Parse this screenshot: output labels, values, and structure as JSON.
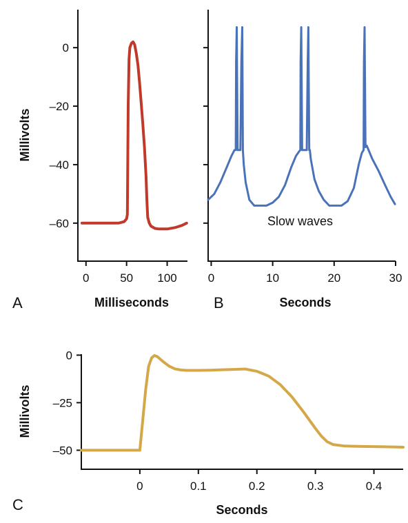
{
  "chart_data": [
    {
      "panel": "A",
      "type": "line",
      "xlabel": "Milliseconds",
      "ylabel": "Millivolts",
      "xlim": [
        -10,
        125
      ],
      "ylim": [
        -73,
        13
      ],
      "xticks": [
        0,
        50,
        100
      ],
      "xtick_labels": [
        "0",
        "50",
        "100"
      ],
      "yticks": [
        0,
        -20,
        -40,
        -60
      ],
      "ytick_labels": [
        "0",
        "–20",
        "–40",
        "–60"
      ],
      "grid": false,
      "color": "#c0392b",
      "series": [
        {
          "x": [
            -5,
            10,
            25,
            40,
            47,
            50,
            51,
            52,
            53,
            54,
            56,
            58,
            60,
            62,
            64,
            66,
            68,
            70,
            72,
            74,
            75,
            76,
            78,
            80,
            85,
            90,
            100,
            110,
            118,
            124
          ],
          "y": [
            -60,
            -60,
            -60,
            -60,
            -59.5,
            -58.5,
            -57,
            -20,
            -4,
            0,
            1.5,
            2,
            1,
            -2,
            -6,
            -12,
            -19,
            -26,
            -34,
            -44,
            -52,
            -58,
            -60,
            -61,
            -61.8,
            -62,
            -62,
            -61.5,
            -60.8,
            -60
          ]
        }
      ]
    },
    {
      "panel": "B",
      "type": "line",
      "xlabel": "Seconds",
      "ylabel": "",
      "xlim": [
        -0.5,
        30
      ],
      "ylim": [
        -73,
        13
      ],
      "xticks": [
        0,
        10,
        20,
        30
      ],
      "xtick_labels": [
        "0",
        "10",
        "20",
        "30"
      ],
      "yticks": [
        0,
        -20,
        -40,
        -60
      ],
      "grid": false,
      "annotation": "Slow waves",
      "color": "#4a72b8",
      "series": [
        {
          "x": [
            -0.5,
            0.5,
            1.5,
            2.5,
            3.3,
            3.8,
            4.0,
            4.05,
            4.15,
            4.3,
            4.45,
            4.55,
            4.75,
            4.9,
            5.05,
            5.15,
            5.3,
            5.6,
            6.2,
            7,
            8,
            9,
            10,
            11,
            12,
            13,
            13.8,
            14.3,
            14.5,
            14.55,
            14.65,
            14.8,
            15.0,
            15.15,
            15.55,
            15.7,
            15.8,
            15.95,
            16.05,
            16.2,
            16.8,
            17.5,
            18.3,
            19.2,
            20.2,
            21.2,
            22.2,
            23.2,
            24,
            24.5,
            24.8,
            24.85,
            24.95,
            25.1,
            25.3,
            25.5,
            26.2,
            27.2,
            28.3,
            29.2,
            29.9
          ],
          "y": [
            -52,
            -50,
            -46,
            -41,
            -37,
            -35,
            -35,
            -5,
            7,
            -35,
            -35,
            -35,
            -35,
            -5,
            7,
            -35,
            -40,
            -46,
            -52,
            -54,
            -54,
            -54,
            -53,
            -51,
            -47,
            -41,
            -37,
            -35.5,
            -35,
            -5,
            7,
            -35,
            -35,
            -35,
            -35,
            -5,
            7,
            -35,
            -35,
            -38,
            -45,
            -49,
            -52,
            -54,
            -54,
            -54,
            -52.5,
            -48,
            -40,
            -36,
            -35,
            -5,
            7,
            -34,
            -33.5,
            -34.5,
            -38,
            -42,
            -47,
            -51,
            -53.5
          ]
        }
      ]
    },
    {
      "panel": "C",
      "type": "line",
      "xlabel": "Seconds",
      "ylabel": "Millivolts",
      "xlim": [
        -0.1,
        0.45
      ],
      "ylim": [
        -60,
        0.5
      ],
      "xticks": [
        0,
        0.1,
        0.2,
        0.3,
        0.4
      ],
      "xtick_labels": [
        "0",
        "0.1",
        "0.2",
        "0.3",
        "0.4"
      ],
      "yticks": [
        0,
        -25,
        -50
      ],
      "ytick_labels": [
        "0",
        "–25",
        "–50"
      ],
      "grid": false,
      "color": "#d4a849",
      "series": [
        {
          "x": [
            -0.1,
            -0.05,
            -0.02,
            0,
            0.005,
            0.01,
            0.015,
            0.02,
            0.025,
            0.03,
            0.04,
            0.05,
            0.06,
            0.07,
            0.08,
            0.1,
            0.12,
            0.14,
            0.16,
            0.18,
            0.2,
            0.22,
            0.24,
            0.26,
            0.28,
            0.3,
            0.31,
            0.32,
            0.33,
            0.35,
            0.38,
            0.42,
            0.45
          ],
          "y": [
            -50,
            -50,
            -50,
            -50,
            -34,
            -18,
            -6,
            -1.5,
            -0.2,
            -0.8,
            -3.5,
            -5.8,
            -7.2,
            -7.8,
            -8.0,
            -8.0,
            -7.9,
            -7.7,
            -7.5,
            -7.3,
            -8.5,
            -11,
            -15.5,
            -22,
            -30,
            -38.5,
            -42.5,
            -45.5,
            -47,
            -47.8,
            -48,
            -48.2,
            -48.4
          ]
        }
      ]
    }
  ]
}
